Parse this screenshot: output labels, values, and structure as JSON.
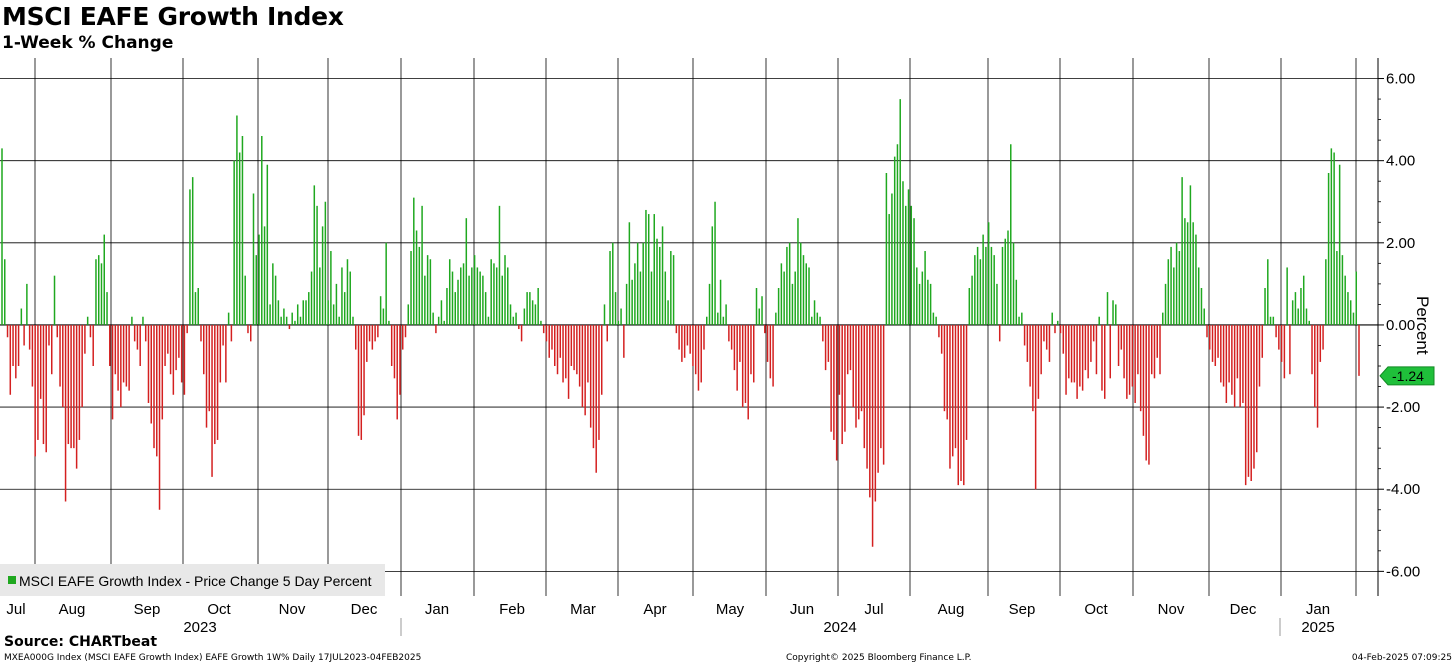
{
  "chart_data": {
    "type": "bar",
    "title": "MSCI EAFE Growth Index",
    "subtitle": "1-Week % Change",
    "ylabel": "Percent",
    "ylim": [
      -6.6,
      6.5
    ],
    "yticks": [
      "6.00",
      "4.00",
      "2.00",
      "0.00",
      "-2.00",
      "-4.00",
      "-6.00"
    ],
    "ytick_values": [
      6,
      4,
      2,
      0,
      -2,
      -4,
      -6
    ],
    "grid": true,
    "legend": {
      "label": "MSCI EAFE Growth Index - Price Change 5 Day Percent",
      "placement": "bottom-left"
    },
    "last_value_label": "-1.24",
    "last_value": -1.24,
    "positive_color": "#1fa81f",
    "negative_color": "#d42020",
    "months": [
      "Jul",
      "Aug",
      "Sep",
      "Oct",
      "Nov",
      "Dec",
      "Jan",
      "Feb",
      "Mar",
      "Apr",
      "May",
      "Jun",
      "Jul",
      "Aug",
      "Sep",
      "Oct",
      "Nov",
      "Dec",
      "Jan"
    ],
    "years": [
      "2023",
      "2024",
      "2025"
    ],
    "values": [
      4.3,
      1.6,
      -0.3,
      -1.7,
      -1.0,
      -1.3,
      -1.0,
      0.4,
      -0.5,
      1.0,
      -0.6,
      -1.5,
      -3.2,
      -2.8,
      -1.8,
      -2.9,
      -3.1,
      -0.5,
      -1.2,
      1.2,
      -0.3,
      -1.5,
      -2.0,
      -4.3,
      -2.9,
      -3.0,
      -3.0,
      -3.5,
      -2.8,
      -2.0,
      -0.7,
      0.2,
      -0.3,
      -1.0,
      1.6,
      1.7,
      1.5,
      2.2,
      0.8,
      -1.0,
      -2.3,
      -1.2,
      -1.6,
      -2.0,
      -1.4,
      -1.5,
      -1.6,
      0.2,
      -0.4,
      -0.6,
      -1.0,
      0.2,
      -0.4,
      -1.9,
      -2.4,
      -3.0,
      -3.2,
      -4.5,
      -2.3,
      -1.0,
      -0.7,
      -1.2,
      -1.7,
      -1.1,
      -0.8,
      -1.4,
      -1.7,
      -0.2,
      3.3,
      3.6,
      0.8,
      0.9,
      -0.4,
      -1.2,
      -2.5,
      -2.1,
      -3.7,
      -2.9,
      -2.8,
      -1.4,
      -0.5,
      -1.4,
      0.3,
      -0.4,
      4.0,
      5.1,
      4.2,
      4.6,
      1.2,
      -0.2,
      -0.4,
      3.2,
      1.7,
      2.2,
      4.6,
      2.4,
      3.9,
      0.5,
      1.5,
      1.2,
      0.6,
      0.2,
      0.4,
      0.2,
      -0.1,
      0.3,
      0.1,
      0.5,
      0.2,
      0.6,
      0.6,
      0.8,
      1.3,
      3.4,
      2.9,
      1.4,
      2.4,
      3.0,
      0.6,
      1.8,
      0.5,
      1.0,
      0.2,
      1.4,
      0.8,
      1.6,
      1.3,
      0.2,
      -0.6,
      -2.7,
      -2.8,
      -2.2,
      -0.9,
      -0.4,
      -0.6,
      -0.4,
      -0.3,
      0.7,
      0.4,
      2.0,
      0.1,
      -1.0,
      -1.3,
      -2.3,
      -1.7,
      -0.6,
      -0.3,
      0.5,
      1.8,
      3.1,
      2.3,
      1.9,
      2.9,
      1.2,
      1.7,
      1.6,
      0.3,
      -0.2,
      0.2,
      0.6,
      0.1,
      0.9,
      1.6,
      1.3,
      0.8,
      1.1,
      1.4,
      1.5,
      2.6,
      1.2,
      1.4,
      1.7,
      1.4,
      1.3,
      1.2,
      0.8,
      0.2,
      1.6,
      1.5,
      1.4,
      2.9,
      1.2,
      1.7,
      1.4,
      0.5,
      0.2,
      0.3,
      -0.1,
      -0.4,
      0.4,
      0.8,
      0.8,
      0.6,
      0.5,
      0.9,
      0.1,
      -0.2,
      -0.4,
      -0.8,
      -0.6,
      -1.0,
      -1.2,
      -0.8,
      -1.4,
      -1.3,
      -1.8,
      -1.0,
      -1.1,
      -1.2,
      -1.5,
      -2.0,
      -2.2,
      -1.4,
      -2.5,
      -3.0,
      -3.6,
      -2.8,
      -1.7,
      0.5,
      -0.4,
      1.8,
      2.0,
      0.8,
      0.1,
      0.4,
      -0.8,
      1.0,
      2.5,
      1.1,
      1.5,
      2.0,
      1.3,
      2.0,
      2.8,
      2.7,
      1.3,
      2.7,
      2.1,
      1.9,
      2.4,
      1.3,
      0.6,
      1.8,
      1.7,
      -0.2,
      -0.6,
      -0.9,
      -0.8,
      -0.5,
      -0.7,
      -1.0,
      -1.2,
      -1.6,
      -1.4,
      -0.6,
      0.2,
      1.0,
      2.4,
      3.0,
      0.3,
      1.1,
      0.2,
      0.5,
      -0.4,
      -0.6,
      -1.1,
      -1.6,
      -0.9,
      -2.0,
      -1.9,
      -2.3,
      -1.2,
      -1.4,
      0.9,
      0.4,
      0.7,
      -0.2,
      -0.9,
      -1.3,
      -1.5,
      0.3,
      0.9,
      1.5,
      1.3,
      1.9,
      2.0,
      1.0,
      1.3,
      2.6,
      2.0,
      1.7,
      1.5,
      1.4,
      0.2,
      0.6,
      0.3,
      0.2,
      -0.4,
      -1.1,
      -0.9,
      -2.6,
      -2.8,
      -3.3,
      -1.7,
      -2.9,
      -2.6,
      -1.2,
      -1.1,
      -2.0,
      -2.5,
      -2.3,
      -2.1,
      -3.0,
      -3.5,
      -4.2,
      -5.4,
      -4.3,
      -3.6,
      -3.0,
      -3.4,
      3.7,
      2.7,
      3.2,
      4.1,
      4.4,
      5.5,
      3.5,
      2.9,
      3.3,
      2.9,
      2.6,
      1.4,
      1.0,
      1.3,
      1.8,
      1.1,
      1.0,
      0.3,
      0.2,
      -0.3,
      -0.7,
      -2.1,
      -2.3,
      -3.5,
      -3.2,
      -3.0,
      -3.9,
      -3.8,
      -3.9,
      -2.8,
      0.9,
      1.2,
      1.7,
      1.9,
      1.6,
      2.2,
      1.9,
      2.5,
      1.9,
      1.7,
      1.0,
      -0.4,
      1.9,
      2.1,
      2.3,
      4.4,
      2.0,
      1.1,
      0.2,
      0.3,
      -0.5,
      -0.9,
      -1.5,
      -2.1,
      -4.0,
      -1.8,
      -1.2,
      -0.4,
      -0.6,
      -0.9,
      0.3,
      -0.2,
      0.1,
      -0.2,
      -0.7,
      -1.7,
      -1.3,
      -1.4,
      -1.4,
      -1.8,
      -1.5,
      -1.6,
      -1.1,
      -1.3,
      -0.9,
      -0.4,
      -1.2,
      0.2,
      -1.6,
      -1.8,
      0.8,
      -1.3,
      0.6,
      0.5,
      -1.0,
      -0.6,
      -1.3,
      -1.8,
      -1.7,
      -1.5,
      -1.9,
      -1.2,
      -2.1,
      -2.7,
      -3.3,
      -3.4,
      -1.2,
      -1.3,
      -0.8,
      -1.2,
      0.3,
      1.0,
      1.6,
      1.9,
      1.4,
      2.0,
      1.8,
      3.6,
      2.6,
      2.5,
      3.4,
      2.5,
      2.2,
      1.4,
      0.9,
      0.4,
      -0.3,
      -0.6,
      -0.9,
      -1.0,
      -0.8,
      -1.4,
      -1.5,
      -1.9,
      -1.4,
      -1.7,
      -2.0,
      -1.3,
      -2.0,
      -1.9,
      -3.9,
      -3.7,
      -3.8,
      -3.5,
      -3.1,
      -1.5,
      -0.8,
      0.9,
      1.6,
      0.2,
      0.2,
      -0.3,
      -0.6,
      -0.9,
      -1.3,
      1.4,
      -1.2,
      0.6,
      0.8,
      0.4,
      0.9,
      1.2,
      0.4,
      0.1,
      -1.2,
      -2.0,
      -2.5,
      -0.9,
      -0.6,
      1.6,
      3.7,
      4.3,
      4.2,
      1.8,
      3.9,
      1.7,
      1.2,
      0.8,
      0.6,
      0.3,
      1.3,
      -1.24
    ]
  },
  "source": "Source: CHARTbeat",
  "footer": {
    "left": "MXEA000G Index (MSCI EAFE Growth Index) EAFE Growth 1W%  Daily 17JUL2023-04FEB2025",
    "center": "Copyright© 2025 Bloomberg Finance L.P.",
    "right": "04-Feb-2025 07:09:25"
  }
}
